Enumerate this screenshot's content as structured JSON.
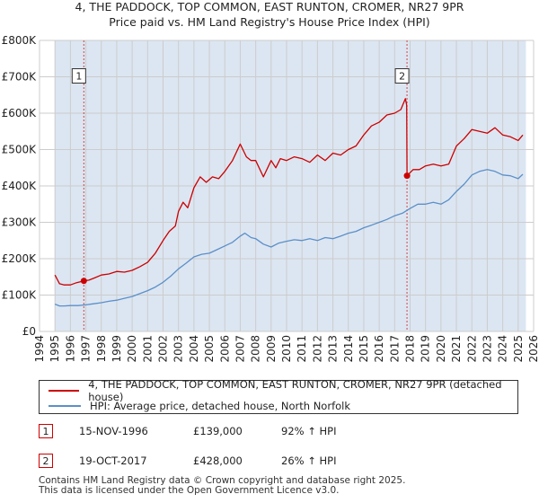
{
  "title_line1": "4, THE PADDOCK, TOP COMMON, EAST RUNTON, CROMER, NR27 9PR",
  "title_line2": "Price paid vs. HM Land Registry's House Price Index (HPI)",
  "legend": {
    "property_label": "4, THE PADDOCK, TOP COMMON, EAST RUNTON, CROMER, NR27 9PR (detached house)",
    "hpi_label": "HPI: Average price, detached house, North Norfolk"
  },
  "sales": [
    {
      "num": "1",
      "date": "15-NOV-1996",
      "price": "£139,000",
      "hpi_change": "92% ↑ HPI"
    },
    {
      "num": "2",
      "date": "19-OCT-2017",
      "price": "£428,000",
      "hpi_change": "26% ↑ HPI"
    }
  ],
  "footer_line1": "Contains HM Land Registry data © Crown copyright and database right 2025.",
  "footer_line2": "This data is licensed under the Open Government Licence v3.0.",
  "colors": {
    "property": "#cc0000",
    "hpi": "#5b8fc9",
    "shade": "#dce6f2",
    "grid": "#cccccc"
  },
  "chart_data": {
    "type": "line",
    "title": "4, THE PADDOCK, TOP COMMON, EAST RUNTON, CROMER, NR27 9PR — Price paid vs. HM Land Registry's House Price Index (HPI)",
    "xlabel": "",
    "ylabel": "",
    "xlim": [
      1994,
      2026
    ],
    "ylim": [
      0,
      800000
    ],
    "y_ticks": [
      0,
      100000,
      200000,
      300000,
      400000,
      500000,
      600000,
      700000,
      800000
    ],
    "y_tick_labels": [
      "£0",
      "£100K",
      "£200K",
      "£300K",
      "£400K",
      "£500K",
      "£600K",
      "£700K",
      "£800K"
    ],
    "x_ticks": [
      1994,
      1995,
      1996,
      1997,
      1998,
      1999,
      2000,
      2001,
      2002,
      2003,
      2004,
      2005,
      2006,
      2007,
      2008,
      2009,
      2010,
      2011,
      2012,
      2013,
      2014,
      2015,
      2016,
      2017,
      2018,
      2019,
      2020,
      2021,
      2022,
      2023,
      2024,
      2025,
      2026
    ],
    "data_range_start": 1995.0,
    "data_range_end": 2025.5,
    "series": [
      {
        "name": "4, THE PADDOCK, TOP COMMON, EAST RUNTON, CROMER, NR27 9PR (detached house)",
        "x": [
          1995.0,
          1995.3,
          1995.6,
          1996.0,
          1996.4,
          1996.87,
          1997.2,
          1997.6,
          1998.0,
          1998.5,
          1999.0,
          1999.5,
          2000.0,
          2000.5,
          2001.0,
          2001.5,
          2002.0,
          2002.4,
          2002.8,
          2003.0,
          2003.3,
          2003.6,
          2004.0,
          2004.4,
          2004.8,
          2005.2,
          2005.6,
          2006.0,
          2006.5,
          2007.0,
          2007.4,
          2007.7,
          2008.0,
          2008.5,
          2009.0,
          2009.3,
          2009.6,
          2010.0,
          2010.5,
          2011.0,
          2011.5,
          2012.0,
          2012.5,
          2013.0,
          2013.5,
          2014.0,
          2014.5,
          2015.0,
          2015.5,
          2016.0,
          2016.5,
          2017.0,
          2017.4,
          2017.7,
          2017.78,
          2017.8,
          2018.2,
          2018.6,
          2019.0,
          2019.5,
          2020.0,
          2020.5,
          2021.0,
          2021.5,
          2022.0,
          2022.5,
          2023.0,
          2023.5,
          2024.0,
          2024.5,
          2025.0,
          2025.3
        ],
        "values": [
          155000,
          131000,
          128000,
          128000,
          134000,
          139000,
          141000,
          148000,
          155000,
          158000,
          165000,
          163000,
          168000,
          178000,
          190000,
          215000,
          250000,
          275000,
          290000,
          330000,
          355000,
          340000,
          395000,
          425000,
          410000,
          425000,
          420000,
          440000,
          470000,
          515000,
          480000,
          470000,
          470000,
          425000,
          470000,
          450000,
          475000,
          470000,
          480000,
          475000,
          465000,
          485000,
          470000,
          490000,
          485000,
          500000,
          510000,
          540000,
          565000,
          575000,
          595000,
          600000,
          610000,
          640000,
          622000,
          428000,
          445000,
          445000,
          455000,
          460000,
          455000,
          460000,
          510000,
          530000,
          555000,
          550000,
          545000,
          560000,
          540000,
          535000,
          525000,
          540000
        ]
      },
      {
        "name": "HPI: Average price, detached house, North Norfolk",
        "x": [
          1995.0,
          1995.3,
          1995.6,
          1996.0,
          1996.5,
          1997.0,
          1997.5,
          1998.0,
          1998.5,
          1999.0,
          1999.5,
          2000.0,
          2000.5,
          2001.0,
          2001.5,
          2002.0,
          2002.5,
          2003.0,
          2003.5,
          2004.0,
          2004.5,
          2005.0,
          2005.5,
          2006.0,
          2006.5,
          2007.0,
          2007.3,
          2007.7,
          2008.0,
          2008.5,
          2009.0,
          2009.5,
          2010.0,
          2010.5,
          2011.0,
          2011.5,
          2012.0,
          2012.5,
          2013.0,
          2013.5,
          2014.0,
          2014.5,
          2015.0,
          2015.5,
          2016.0,
          2016.5,
          2017.0,
          2017.5,
          2018.0,
          2018.5,
          2019.0,
          2019.5,
          2020.0,
          2020.5,
          2021.0,
          2021.5,
          2022.0,
          2022.5,
          2023.0,
          2023.5,
          2024.0,
          2024.5,
          2025.0,
          2025.3
        ],
        "values": [
          75000,
          70000,
          70000,
          71000,
          71000,
          73000,
          76000,
          79000,
          83000,
          86000,
          91000,
          96000,
          104000,
          112000,
          122000,
          135000,
          152000,
          172000,
          188000,
          205000,
          212000,
          215000,
          225000,
          235000,
          245000,
          262000,
          270000,
          258000,
          255000,
          240000,
          232000,
          243000,
          248000,
          252000,
          250000,
          255000,
          250000,
          258000,
          255000,
          262000,
          270000,
          275000,
          285000,
          292000,
          300000,
          308000,
          318000,
          325000,
          338000,
          350000,
          350000,
          355000,
          350000,
          362000,
          385000,
          405000,
          430000,
          440000,
          445000,
          440000,
          430000,
          428000,
          420000,
          432000
        ]
      }
    ],
    "annotations": [
      {
        "label": "1",
        "x": 1996.87,
        "value": 139000
      },
      {
        "label": "2",
        "x": 2017.8,
        "value": 428000
      }
    ]
  }
}
